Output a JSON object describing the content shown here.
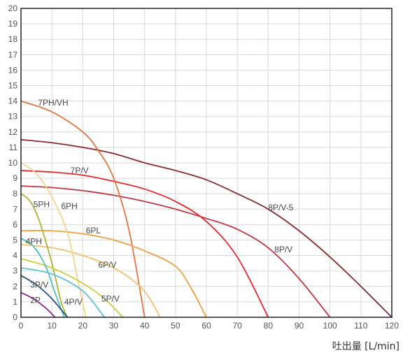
{
  "chart_data": {
    "type": "line",
    "xlabel": "吐出量 [L/min]",
    "ylabel": "",
    "xlim": [
      0,
      120
    ],
    "ylim": [
      0,
      20
    ],
    "x_ticks": [
      "0",
      "10",
      "20",
      "30",
      "40",
      "50",
      "60",
      "70",
      "80",
      "90",
      "100",
      "110",
      "120"
    ],
    "y_ticks": [
      "0",
      "1",
      "2",
      "3",
      "4",
      "5",
      "6",
      "7",
      "8",
      "9",
      "10",
      "11",
      "12",
      "13",
      "14",
      "15",
      "16",
      "17",
      "18",
      "19",
      "20"
    ],
    "grid": true,
    "series": [
      {
        "name": "8P/V-5",
        "color": "#8b2b2e",
        "x": [
          0,
          10,
          20,
          30,
          40,
          50,
          60,
          70,
          80,
          90,
          100,
          110,
          120
        ],
        "y": [
          11.5,
          11.3,
          11.0,
          10.6,
          10.0,
          9.5,
          8.9,
          8.0,
          7.0,
          5.6,
          3.9,
          2.0,
          0
        ]
      },
      {
        "name": "8P/V",
        "color": "#c0393f",
        "x": [
          0,
          10,
          20,
          30,
          40,
          50,
          60,
          70,
          80,
          90,
          100
        ],
        "y": [
          8.5,
          8.4,
          8.2,
          7.9,
          7.5,
          7.0,
          6.4,
          5.7,
          4.5,
          2.5,
          0
        ]
      },
      {
        "name": "7P/V",
        "color": "#e3292f",
        "x": [
          0,
          10,
          20,
          30,
          40,
          50,
          60,
          70,
          80
        ],
        "y": [
          9.5,
          9.4,
          9.2,
          8.8,
          8.3,
          7.5,
          6.2,
          3.9,
          0
        ]
      },
      {
        "name": "7PH/VH",
        "color": "#e3763f",
        "x": [
          0,
          10,
          20,
          25,
          30,
          35,
          40
        ],
        "y": [
          14.0,
          13.3,
          12.0,
          10.8,
          9.0,
          5.6,
          0
        ]
      },
      {
        "name": "6PL",
        "color": "#f0a040",
        "x": [
          0,
          10,
          20,
          30,
          40,
          50,
          55,
          60
        ],
        "y": [
          5.6,
          5.6,
          5.4,
          5.0,
          4.3,
          3.3,
          1.9,
          0
        ]
      },
      {
        "name": "6P/V",
        "color": "#f5c16e",
        "x": [
          0,
          10,
          20,
          30,
          38,
          42,
          45
        ],
        "y": [
          4.7,
          4.5,
          4.0,
          3.2,
          2.1,
          1.1,
          0
        ]
      },
      {
        "name": "6PH",
        "color": "#f5d58a",
        "x": [
          0,
          5,
          10,
          15,
          18,
          21
        ],
        "y": [
          10.0,
          9.3,
          7.8,
          5.5,
          2.8,
          0
        ]
      },
      {
        "name": "5PH",
        "color": "#a9b535",
        "x": [
          0,
          3,
          6,
          10,
          13,
          15
        ],
        "y": [
          8.0,
          7.5,
          6.2,
          3.5,
          1.0,
          0
        ]
      },
      {
        "name": "5P/V",
        "color": "#c9cf3e",
        "x": [
          0,
          10,
          20,
          27,
          33
        ],
        "y": [
          3.8,
          3.2,
          2.2,
          1.2,
          0
        ]
      },
      {
        "name": "4PH",
        "color": "#4fbfbf",
        "x": [
          0,
          4,
          8,
          11,
          14
        ],
        "y": [
          5.1,
          4.6,
          3.3,
          1.6,
          0
        ]
      },
      {
        "name": "4P/V",
        "color": "#5fc3d6",
        "x": [
          0,
          10,
          20,
          27
        ],
        "y": [
          3.2,
          2.8,
          1.7,
          0
        ]
      },
      {
        "name": "3P/V",
        "color": "#2e4f7a",
        "x": [
          0,
          5,
          10,
          15
        ],
        "y": [
          2.7,
          2.1,
          1.2,
          0
        ]
      },
      {
        "name": "2P",
        "color": "#8a2a8a",
        "x": [
          0,
          4,
          8,
          11
        ],
        "y": [
          1.6,
          1.2,
          0.6,
          0
        ]
      }
    ],
    "labels": [
      {
        "series": "7PH/VH",
        "text": "7PH/VH",
        "x": 5.5,
        "y": 13.9
      },
      {
        "series": "7P/V",
        "text": "7P/V",
        "x": 16,
        "y": 9.5
      },
      {
        "series": "8P/V-5",
        "text": "8P/V-5",
        "x": 80,
        "y": 7.1
      },
      {
        "series": "8P/V",
        "text": "8P/V",
        "x": 82,
        "y": 4.4
      },
      {
        "series": "5PH",
        "text": "5PH",
        "x": 4,
        "y": 7.3
      },
      {
        "series": "6PH",
        "text": "6PH",
        "x": 13,
        "y": 7.2
      },
      {
        "series": "6PL",
        "text": "6PL",
        "x": 21,
        "y": 5.6
      },
      {
        "series": "4PH",
        "text": "4PH",
        "x": 1.5,
        "y": 4.9
      },
      {
        "series": "6P/V",
        "text": "6P/V",
        "x": 25,
        "y": 3.4
      },
      {
        "series": "3P/V",
        "text": "3P/V",
        "x": 3,
        "y": 2.1
      },
      {
        "series": "2P",
        "text": "2P",
        "x": 3,
        "y": 1.1
      },
      {
        "series": "4P/V",
        "text": "4P/V",
        "x": 14,
        "y": 1.0
      },
      {
        "series": "5P/V",
        "text": "5P/V",
        "x": 26,
        "y": 1.2
      }
    ]
  }
}
